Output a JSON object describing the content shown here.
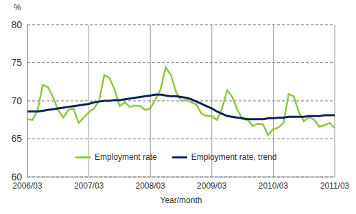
{
  "chart_data": {
    "type": "line",
    "x_label": "Year/month",
    "y_label": "%",
    "categories": [
      "2006/03",
      null,
      null,
      null,
      null,
      null,
      null,
      null,
      null,
      null,
      null,
      null,
      "2007/03",
      null,
      null,
      null,
      null,
      null,
      null,
      null,
      null,
      null,
      null,
      null,
      "2008/03",
      null,
      null,
      null,
      null,
      null,
      null,
      null,
      null,
      null,
      null,
      null,
      "2009/03",
      null,
      null,
      null,
      null,
      null,
      null,
      null,
      null,
      null,
      null,
      null,
      "2010/03",
      null,
      null,
      null,
      null,
      null,
      null,
      null,
      null,
      null,
      null,
      null,
      "2011/03"
    ],
    "series": [
      {
        "name": "Employment rate",
        "color": "#8dc63f",
        "values": [
          67.6,
          67.5,
          68.8,
          72.1,
          71.8,
          70.5,
          68.8,
          67.8,
          68.8,
          69.0,
          67.1,
          67.8,
          68.5,
          69.0,
          70.0,
          73.4,
          73.0,
          71.5,
          69.3,
          69.8,
          69.2,
          69.4,
          69.3,
          68.8,
          69.0,
          70.2,
          71.5,
          74.4,
          73.4,
          71.2,
          70.0,
          70.1,
          69.8,
          69.5,
          68.3,
          68.0,
          68.0,
          67.5,
          69.0,
          71.4,
          70.5,
          68.8,
          67.6,
          67.5,
          66.7,
          67.0,
          66.9,
          65.5,
          66.3,
          66.5,
          67.1,
          70.9,
          70.6,
          68.5,
          67.3,
          67.9,
          67.5,
          66.6,
          66.8,
          67.1,
          66.4
        ]
      },
      {
        "name": "Employment rate, trend",
        "color": "#0b2158",
        "values": [
          68.6,
          68.6,
          68.6,
          68.7,
          68.8,
          68.9,
          69.0,
          69.1,
          69.2,
          69.3,
          69.4,
          69.5,
          69.6,
          69.8,
          69.9,
          70.0,
          70.0,
          70.1,
          70.1,
          70.2,
          70.3,
          70.4,
          70.5,
          70.6,
          70.7,
          70.8,
          70.8,
          70.7,
          70.6,
          70.6,
          70.5,
          70.4,
          70.2,
          69.9,
          69.6,
          69.3,
          69.0,
          68.6,
          68.3,
          68.0,
          67.9,
          67.8,
          67.7,
          67.6,
          67.6,
          67.6,
          67.6,
          67.7,
          67.7,
          67.8,
          67.8,
          67.9,
          67.9,
          67.9,
          67.9,
          68.0,
          68.0,
          68.0,
          68.1,
          68.1,
          68.1
        ]
      }
    ],
    "ylim": [
      60,
      80
    ],
    "yticks": [
      60,
      65,
      70,
      75,
      80
    ],
    "grid": true,
    "legend": "bottom"
  }
}
